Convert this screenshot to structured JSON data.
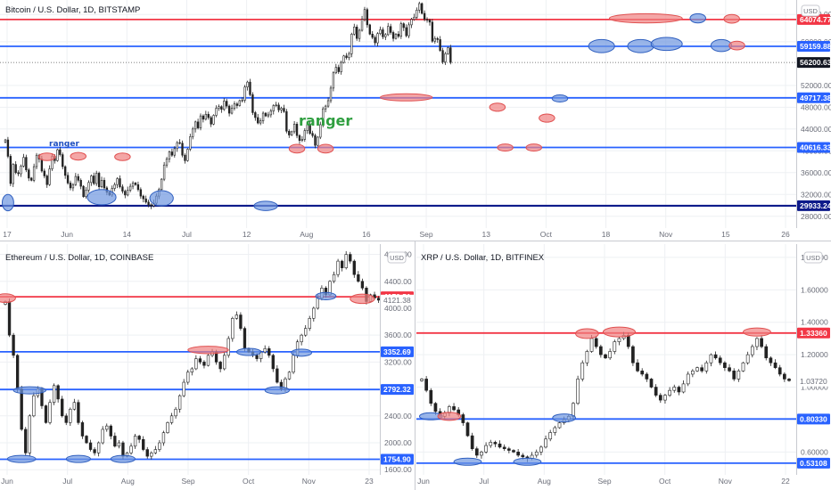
{
  "colors": {
    "up": "#222222",
    "down": "#222222",
    "red_line": "#f23645",
    "blue_line": "#2962ff",
    "navy_line": "#0d1a8a",
    "red_fill": "#f0787880",
    "blue_fill": "#5b8fe0a0",
    "ranger_green": "#2e9e3f",
    "ranger_blue": "#1f4fbf"
  },
  "chart_data": [
    {
      "id": "btc",
      "type": "candlestick",
      "title": "Bitcoin / U.S. Dollar, 1D, BITSTAMP",
      "currency_label": "USD",
      "ylim": [
        26000,
        67000
      ],
      "y_ticks": [
        "28000.00",
        "32000.00",
        "36000.00",
        "40000.00",
        "44000.00",
        "48000.00",
        "52000.00",
        "60000.00",
        "65000.00"
      ],
      "x_ticks": [
        "17",
        "Jun",
        "14",
        "Jul",
        "12",
        "Aug",
        "16",
        "Sep",
        "13",
        "Oct",
        "18",
        "Nov",
        "15",
        "26"
      ],
      "levels": [
        {
          "value": 64074.77,
          "label": "64074.77",
          "color": "red"
        },
        {
          "value": 59159.88,
          "label": "59159.88",
          "color": "blue"
        },
        {
          "value": 49717.38,
          "label": "49717.38",
          "color": "blue"
        },
        {
          "value": 40616.33,
          "label": "40616.33",
          "color": "blue"
        },
        {
          "value": 29933.24,
          "label": "29933.24",
          "color": "navy"
        }
      ],
      "current": {
        "value": 56200.63,
        "label": "56200.63"
      },
      "annotations": [
        {
          "text": "ranger",
          "color": "green",
          "size": "large"
        },
        {
          "text": "ranger",
          "color": "blue",
          "size": "small"
        }
      ],
      "series": [
        42000,
        39000,
        34000,
        37500,
        36000,
        35800,
        37200,
        38800,
        36500,
        35000,
        34600,
        37100,
        39200,
        38500,
        36300,
        35400,
        33800,
        36700,
        39000,
        38200,
        40200,
        39300,
        37100,
        35500,
        34100,
        33200,
        33800,
        35300,
        34600,
        33500,
        31600,
        32800,
        34200,
        35400,
        34000,
        35900,
        33400,
        34600,
        33200,
        32400,
        31900,
        33100,
        33800,
        34900,
        33400,
        32600,
        31900,
        32800,
        33500,
        34100,
        33800,
        32900,
        31700,
        31200,
        30600,
        30100,
        29900,
        30400,
        31700,
        32900,
        34800,
        37400,
        38500,
        39800,
        39200,
        40400,
        41500,
        41400,
        39200,
        38200,
        40300,
        42600,
        44000,
        45300,
        44200,
        46400,
        45800,
        46700,
        46100,
        44900,
        46500,
        47800,
        48100,
        47600,
        49100,
        48200,
        46900,
        47800,
        48600,
        48300,
        49200,
        49300,
        51700,
        52600,
        50300,
        47000,
        46100,
        45100,
        45500,
        46900,
        46400,
        46600,
        47300,
        48300,
        48400,
        47500,
        47800,
        47200,
        43600,
        42900,
        43500,
        44900,
        42800,
        41900,
        42100,
        43700,
        44800,
        43200,
        42800,
        41000,
        42500,
        44800,
        47700,
        48200,
        49200,
        51500,
        54300,
        55300,
        54500,
        56200,
        57400,
        57100,
        57800,
        61400,
        62700,
        60600,
        62100,
        64100,
        65900,
        63100,
        61400,
        60800,
        59800,
        61500,
        62200,
        60900,
        61300,
        62800,
        61700,
        60600,
        61400,
        61000,
        63300,
        62600,
        61100,
        63100,
        64100,
        64500,
        65800,
        67000,
        65200,
        64100,
        64000,
        63600,
        60100,
        60600,
        60400,
        58400,
        56300,
        57800,
        58900,
        56200
      ],
      "highlights": [
        {
          "i": 1,
          "v": 30500,
          "c": "blue",
          "rw": 2.2,
          "rh": 3000
        },
        {
          "i": 16,
          "v": 38900,
          "c": "red",
          "rw": 3.2,
          "rh": 1400
        },
        {
          "i": 28,
          "v": 39000,
          "c": "red",
          "rw": 3.0,
          "rh": 1400
        },
        {
          "i": 37,
          "v": 31500,
          "c": "blue",
          "rw": 5.5,
          "rh": 2800
        },
        {
          "i": 45,
          "v": 38900,
          "c": "red",
          "rw": 3.0,
          "rh": 1400
        },
        {
          "i": 60,
          "v": 31300,
          "c": "blue",
          "rw": 4.5,
          "rh": 2800
        },
        {
          "i": 100,
          "v": 29900,
          "c": "blue",
          "rw": 4.5,
          "rh": 1700
        },
        {
          "i": 112,
          "v": 40400,
          "c": "red",
          "rw": 3.0,
          "rh": 1600
        },
        {
          "i": 123,
          "v": 40400,
          "c": "red",
          "rw": 3.0,
          "rh": 1600
        },
        {
          "i": 154,
          "v": 49800,
          "c": "red",
          "rw": 10.0,
          "rh": 1300
        },
        {
          "i": 189,
          "v": 48000,
          "c": "red",
          "rw": 3.0,
          "rh": 1500
        },
        {
          "i": 192,
          "v": 40600,
          "c": "red",
          "rw": 3.0,
          "rh": 1300
        },
        {
          "i": 203,
          "v": 40600,
          "c": "red",
          "rw": 3.0,
          "rh": 1300
        },
        {
          "i": 208,
          "v": 46000,
          "c": "red",
          "rw": 3.0,
          "rh": 1500
        },
        {
          "i": 213,
          "v": 49600,
          "c": "blue",
          "rw": 3.0,
          "rh": 1200
        },
        {
          "i": 229,
          "v": 59200,
          "c": "blue",
          "rw": 5.0,
          "rh": 2400
        },
        {
          "i": 246,
          "v": 64300,
          "c": "red",
          "rw": 14.0,
          "rh": 1700
        },
        {
          "i": 244,
          "v": 59200,
          "c": "blue",
          "rw": 5.0,
          "rh": 2400
        },
        {
          "i": 254,
          "v": 59600,
          "c": "blue",
          "rw": 6.0,
          "rh": 2400
        },
        {
          "i": 266,
          "v": 64300,
          "c": "blue",
          "rw": 3.0,
          "rh": 1700
        },
        {
          "i": 275,
          "v": 59300,
          "c": "blue",
          "rw": 4.0,
          "rh": 2200
        },
        {
          "i": 279,
          "v": 64200,
          "c": "red",
          "rw": 3.0,
          "rh": 1600
        },
        {
          "i": 281,
          "v": 59300,
          "c": "red",
          "rw": 3.0,
          "rh": 1600
        }
      ]
    },
    {
      "id": "eth",
      "type": "candlestick",
      "title": "Ethereum / U.S. Dollar, 1D, COINBASE",
      "currency_label": "USD",
      "ylim": [
        1550,
        4900
      ],
      "y_ticks": [
        "1600.00",
        "2000.00",
        "2400.00",
        "3200.00",
        "3600.00",
        "4000.00",
        "4400.00",
        "4800.00"
      ],
      "x_ticks": [
        "Jun",
        "Jul",
        "Aug",
        "Sep",
        "Oct",
        "Nov",
        "23"
      ],
      "levels": [
        {
          "value": 4170.51,
          "label": "4170.51",
          "color": "red"
        },
        {
          "value": 3352.69,
          "label": "3352.69",
          "color": "blue"
        },
        {
          "value": 2792.32,
          "label": "2792.32",
          "color": "blue"
        },
        {
          "value": 1754.9,
          "label": "1754.90",
          "color": "blue"
        }
      ],
      "current": {
        "value": 4121.38,
        "label": "4121.38",
        "plain": true
      },
      "series": [
        4100,
        3600,
        3300,
        2800,
        2200,
        1850,
        2400,
        2700,
        2800,
        2550,
        2300,
        2600,
        2850,
        2650,
        2400,
        2300,
        2500,
        2600,
        2300,
        2100,
        2000,
        1900,
        1850,
        2000,
        2200,
        2250,
        2100,
        1950,
        2000,
        1800,
        1850,
        1950,
        2100,
        2050,
        1900,
        1800,
        1850,
        1900,
        2000,
        2150,
        2300,
        2400,
        2500,
        2700,
        2900,
        3050,
        3100,
        3250,
        3200,
        3150,
        3300,
        3350,
        3200,
        3100,
        3300,
        3550,
        3850,
        3900,
        3700,
        3400,
        3350,
        3300,
        3250,
        3350,
        3400,
        3300,
        3100,
        2900,
        2800,
        2950,
        3050,
        3300,
        3500,
        3600,
        3700,
        3850,
        4000,
        4150,
        4300,
        4200,
        4400,
        4500,
        4700,
        4600,
        4800,
        4700,
        4500,
        4400,
        4300,
        4100,
        4200,
        4150,
        4120
      ],
      "highlights": [
        {
          "i": 0,
          "v": 4150,
          "c": "red",
          "rw": 2.5,
          "rh": 130
        },
        {
          "i": 6,
          "v": 2780,
          "c": "blue",
          "rw": 4.0,
          "rh": 100
        },
        {
          "i": 4,
          "v": 1760,
          "c": "blue",
          "rw": 3.5,
          "rh": 90
        },
        {
          "i": 18,
          "v": 1760,
          "c": "blue",
          "rw": 3.0,
          "rh": 90
        },
        {
          "i": 29,
          "v": 1760,
          "c": "blue",
          "rw": 3.0,
          "rh": 90
        },
        {
          "i": 50,
          "v": 3380,
          "c": "red",
          "rw": 5.0,
          "rh": 110
        },
        {
          "i": 60,
          "v": 3350,
          "c": "blue",
          "rw": 3.0,
          "rh": 100
        },
        {
          "i": 67,
          "v": 2780,
          "c": "blue",
          "rw": 3.0,
          "rh": 100
        },
        {
          "i": 73,
          "v": 3340,
          "c": "blue",
          "rw": 2.5,
          "rh": 100
        },
        {
          "i": 79,
          "v": 4180,
          "c": "blue",
          "rw": 2.5,
          "rh": 110
        },
        {
          "i": 88,
          "v": 4140,
          "c": "red",
          "rw": 3.0,
          "rh": 140
        }
      ]
    },
    {
      "id": "xrp",
      "type": "candlestick",
      "title": "XRP / U.S. Dollar, 1D, BITFINEX",
      "currency_label": "USD",
      "ylim": [
        0.47,
        1.86
      ],
      "y_ticks": [
        "0.60000",
        "1.00000",
        "1.20000",
        "1.40000",
        "1.60000",
        "1.80000"
      ],
      "x_ticks": [
        "Jun",
        "Jul",
        "Aug",
        "Sep",
        "Oct",
        "Nov",
        "22"
      ],
      "levels": [
        {
          "value": 1.3336,
          "label": "1.33360",
          "color": "red"
        },
        {
          "value": 0.8033,
          "label": "0.80330",
          "color": "blue"
        },
        {
          "value": 0.53108,
          "label": "0.53108",
          "color": "blue"
        }
      ],
      "current": {
        "value": 1.0372,
        "label": "1.03720",
        "plain": true
      },
      "series": [
        1.05,
        0.98,
        0.9,
        0.85,
        0.82,
        0.84,
        0.88,
        0.86,
        0.83,
        0.78,
        0.7,
        0.62,
        0.58,
        0.6,
        0.64,
        0.66,
        0.65,
        0.63,
        0.62,
        0.61,
        0.6,
        0.58,
        0.57,
        0.56,
        0.58,
        0.6,
        0.63,
        0.68,
        0.72,
        0.75,
        0.78,
        0.8,
        0.82,
        0.9,
        1.05,
        1.15,
        1.22,
        1.3,
        1.25,
        1.2,
        1.18,
        1.22,
        1.28,
        1.3,
        1.32,
        1.25,
        1.15,
        1.1,
        1.08,
        1.05,
        1.0,
        0.95,
        0.92,
        0.95,
        0.98,
        1.0,
        0.97,
        1.02,
        1.08,
        1.1,
        1.12,
        1.1,
        1.15,
        1.2,
        1.18,
        1.15,
        1.12,
        1.1,
        1.05,
        1.1,
        1.15,
        1.2,
        1.25,
        1.3,
        1.25,
        1.18,
        1.15,
        1.12,
        1.08,
        1.05,
        1.04
      ],
      "highlights": [
        {
          "i": 2,
          "v": 0.82,
          "c": "blue",
          "rw": 2.5,
          "rh": 0.04
        },
        {
          "i": 6,
          "v": 0.82,
          "c": "red",
          "rw": 2.5,
          "rh": 0.05
        },
        {
          "i": 10,
          "v": 0.54,
          "c": "blue",
          "rw": 3.0,
          "rh": 0.04
        },
        {
          "i": 23,
          "v": 0.54,
          "c": "blue",
          "rw": 3.0,
          "rh": 0.04
        },
        {
          "i": 31,
          "v": 0.81,
          "c": "blue",
          "rw": 2.5,
          "rh": 0.05
        },
        {
          "i": 36,
          "v": 1.33,
          "c": "red",
          "rw": 2.5,
          "rh": 0.06
        },
        {
          "i": 43,
          "v": 1.34,
          "c": "red",
          "rw": 3.5,
          "rh": 0.06
        },
        {
          "i": 73,
          "v": 1.34,
          "c": "red",
          "rw": 3.0,
          "rh": 0.05
        }
      ]
    }
  ]
}
